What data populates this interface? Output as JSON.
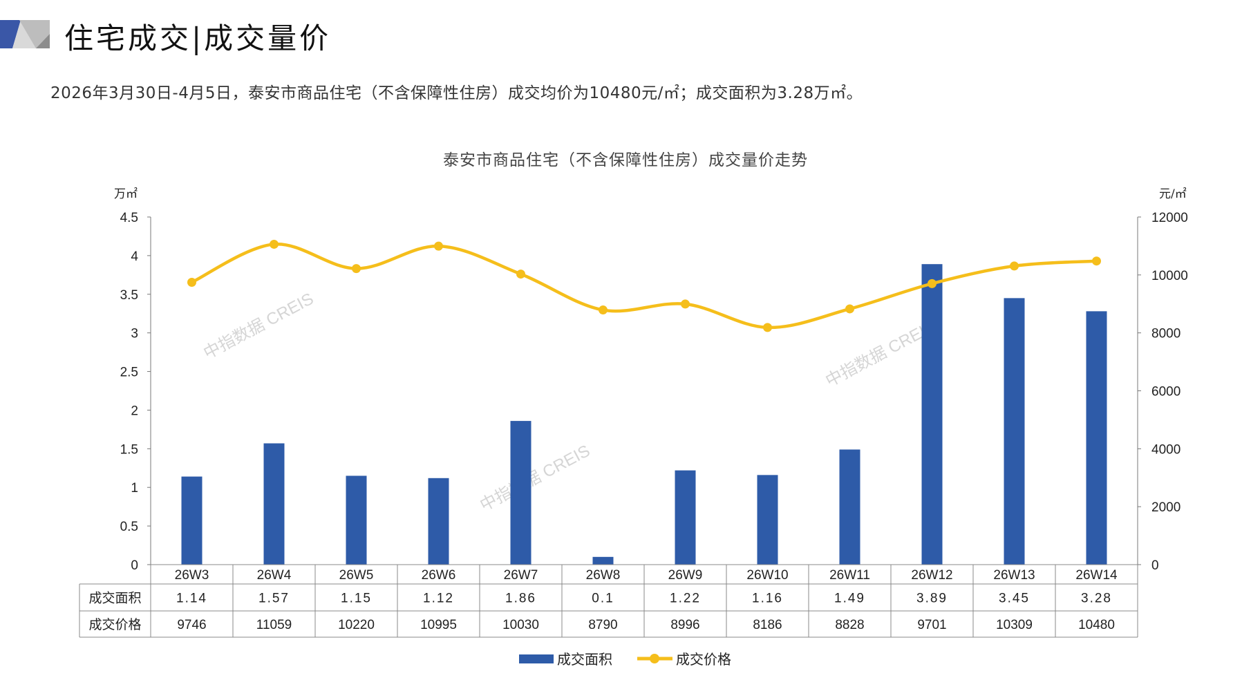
{
  "header": {
    "title": "住宅成交|成交量价",
    "summary": "2026年3月30日-4月5日，泰安市商品住宅（不含保障性住房）成交均价为10480元/㎡；成交面积为3.28万㎡。"
  },
  "watermark": "中指数据 CREIS",
  "colors": {
    "bar": "#2E5BA8",
    "line": "#F5BE1B",
    "logo_blue": "#3A57A7",
    "logo_gray": "#9a9a9a"
  },
  "chart_data": {
    "type": "bar+line",
    "title": "泰安市商品住宅（不含保障性住房）成交量价走势",
    "ylabel_left": "万㎡",
    "ylabel_right": "元/㎡",
    "ylim_left": [
      0,
      4.5
    ],
    "yticks_left": [
      "0",
      "0.5",
      "1",
      "1.5",
      "2",
      "2.5",
      "3",
      "3.5",
      "4",
      "4.5"
    ],
    "ylim_right": [
      0,
      12000
    ],
    "yticks_right": [
      "0",
      "2000",
      "4000",
      "6000",
      "8000",
      "10000",
      "12000"
    ],
    "categories": [
      "26W3",
      "26W4",
      "26W5",
      "26W6",
      "26W7",
      "26W8",
      "26W9",
      "26W10",
      "26W11",
      "26W12",
      "26W13",
      "26W14"
    ],
    "series": [
      {
        "name": "成交面积",
        "axis": "left",
        "type": "bar",
        "values": [
          1.14,
          1.57,
          1.15,
          1.12,
          1.86,
          0.1,
          1.22,
          1.16,
          1.49,
          3.89,
          3.45,
          3.28
        ],
        "labels": [
          "1.14",
          "1.57",
          "1.15",
          "1.12",
          "1.86",
          "0.1",
          "1.22",
          "1.16",
          "1.49",
          "3.89",
          "3.45",
          "3.28"
        ]
      },
      {
        "name": "成交价格",
        "axis": "right",
        "type": "line",
        "values": [
          9746,
          11059,
          10220,
          10995,
          10030,
          8790,
          8996,
          8186,
          8828,
          9701,
          10309,
          10480
        ],
        "labels": [
          "9746",
          "11059",
          "10220",
          "10995",
          "10030",
          "8790",
          "8996",
          "8186",
          "8828",
          "9701",
          "10309",
          "10480"
        ]
      }
    ],
    "legend": "bottom"
  }
}
